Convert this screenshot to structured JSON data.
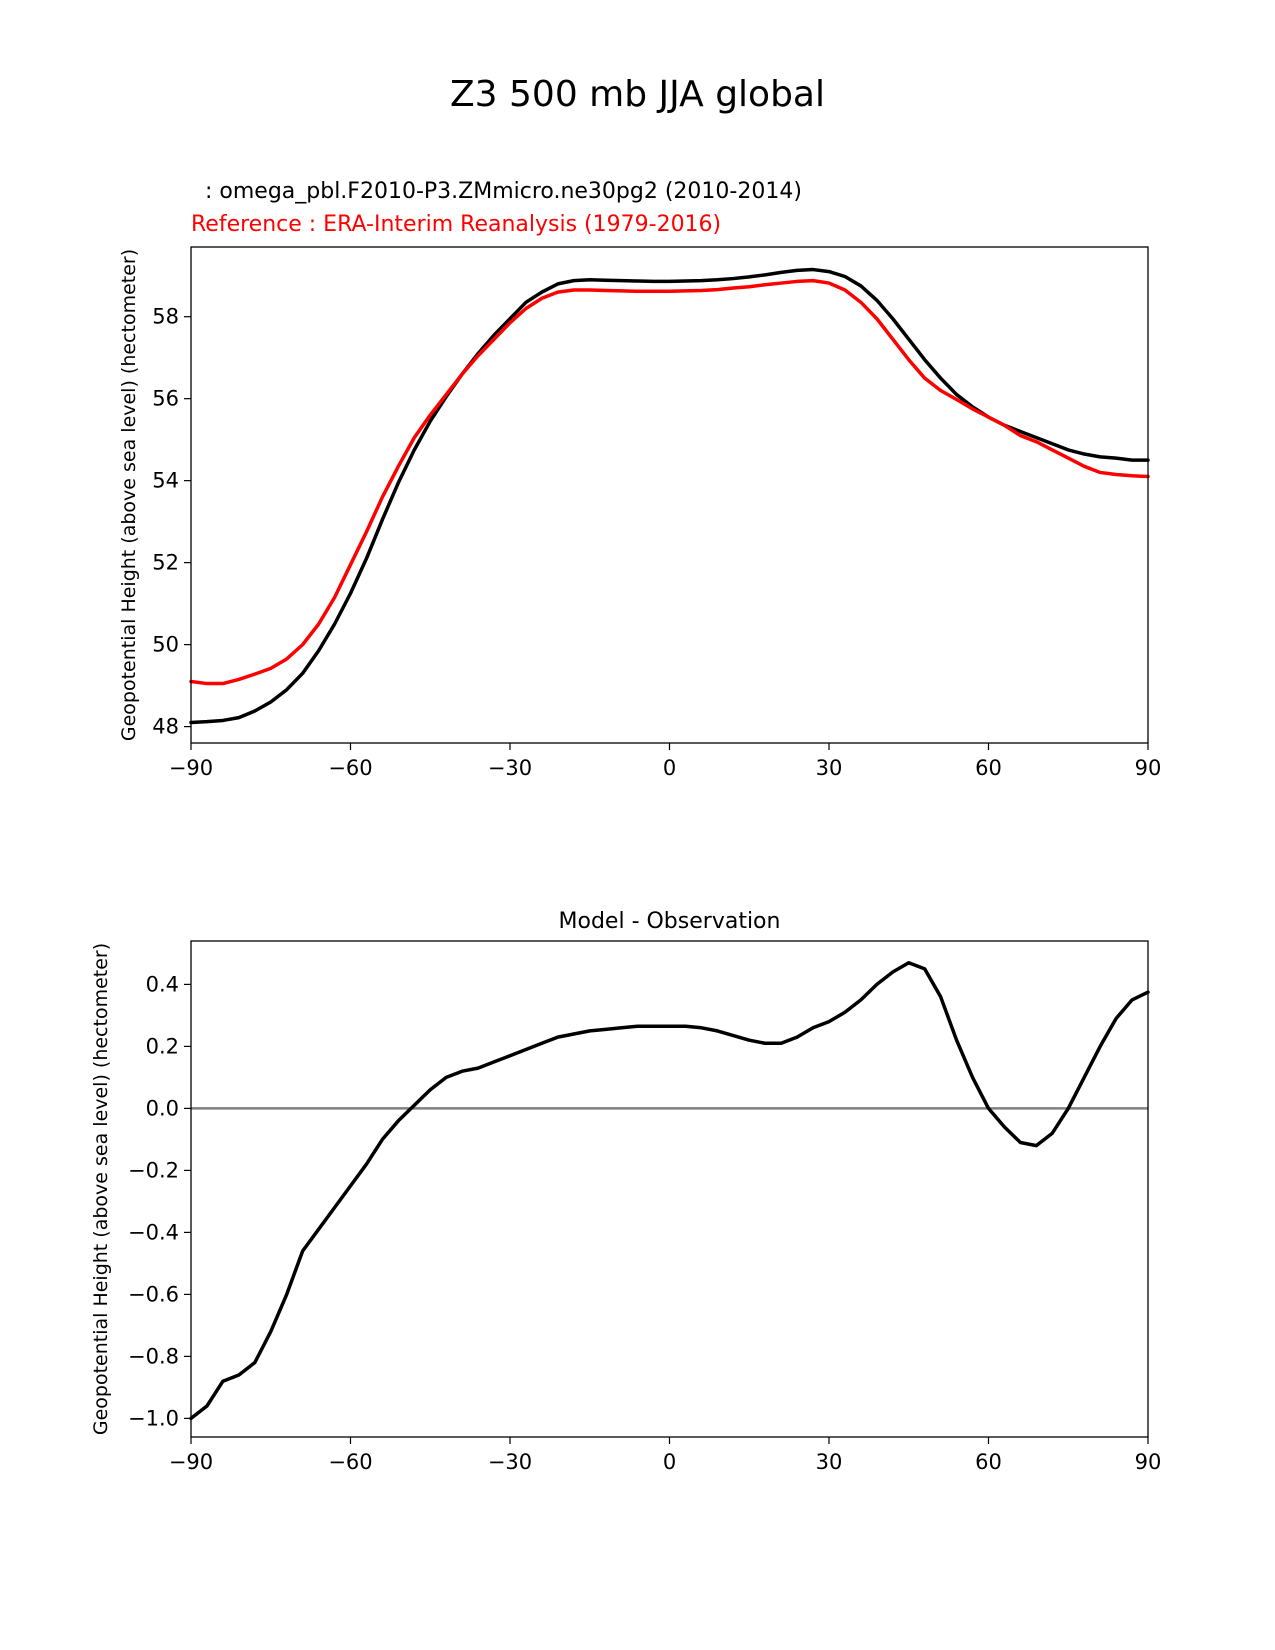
{
  "figure": {
    "title": "Z3 500 mb JJA global"
  },
  "chart_data": [
    {
      "type": "line",
      "id": "top",
      "title_left_line1": "  : omega_pbl.F2010-P3.ZMmicro.ne30pg2 (2010-2014)",
      "title_left_line2": "Reference : ERA-Interim Reanalysis (1979-2016)",
      "xlabel": "",
      "ylabel": "Geopotential Height (above sea level) (hectometer)",
      "xlim": [
        -90,
        90
      ],
      "ylim": [
        47.6,
        59.7
      ],
      "xticks": [
        -90,
        -60,
        -30,
        0,
        30,
        60,
        90
      ],
      "xtick_labels": [
        "−90",
        "−60",
        "−30",
        "0",
        "30",
        "60",
        "90"
      ],
      "yticks": [
        48,
        50,
        52,
        54,
        56,
        58
      ],
      "ytick_labels": [
        "48",
        "50",
        "52",
        "54",
        "56",
        "58"
      ],
      "series": [
        {
          "name": "Test: omega_pbl.F2010-P3.ZMmicro.ne30pg2",
          "color": "#000000",
          "x": [
            -90,
            -87,
            -84,
            -81,
            -78,
            -75,
            -72,
            -69,
            -66,
            -63,
            -60,
            -57,
            -54,
            -51,
            -48,
            -45,
            -42,
            -39,
            -36,
            -33,
            -30,
            -27,
            -24,
            -21,
            -18,
            -15,
            -12,
            -9,
            -6,
            -3,
            0,
            3,
            6,
            9,
            12,
            15,
            18,
            21,
            24,
            27,
            30,
            33,
            36,
            39,
            42,
            45,
            48,
            51,
            54,
            57,
            60,
            63,
            66,
            69,
            72,
            75,
            78,
            81,
            84,
            87,
            90
          ],
          "values": [
            48.1,
            48.12,
            48.15,
            48.22,
            48.38,
            48.6,
            48.9,
            49.3,
            49.85,
            50.5,
            51.25,
            52.1,
            53.05,
            53.95,
            54.75,
            55.45,
            56.05,
            56.6,
            57.1,
            57.55,
            57.95,
            58.35,
            58.6,
            58.8,
            58.88,
            58.9,
            58.89,
            58.88,
            58.87,
            58.86,
            58.86,
            58.87,
            58.88,
            58.9,
            58.93,
            58.97,
            59.02,
            59.08,
            59.13,
            59.15,
            59.1,
            58.98,
            58.75,
            58.4,
            57.95,
            57.45,
            56.95,
            56.5,
            56.1,
            55.8,
            55.55,
            55.35,
            55.2,
            55.05,
            54.9,
            54.75,
            54.65,
            54.58,
            54.55,
            54.5,
            54.5
          ]
        },
        {
          "name": "Reference: ERA-Interim Reanalysis",
          "color": "#ff0000",
          "x": [
            -90,
            -87,
            -84,
            -81,
            -78,
            -75,
            -72,
            -69,
            -66,
            -63,
            -60,
            -57,
            -54,
            -51,
            -48,
            -45,
            -42,
            -39,
            -36,
            -33,
            -30,
            -27,
            -24,
            -21,
            -18,
            -15,
            -12,
            -9,
            -6,
            -3,
            0,
            3,
            6,
            9,
            12,
            15,
            18,
            21,
            24,
            27,
            30,
            33,
            36,
            39,
            42,
            45,
            48,
            51,
            54,
            57,
            60,
            63,
            66,
            69,
            72,
            75,
            78,
            81,
            84,
            87,
            90
          ],
          "values": [
            49.1,
            49.05,
            49.05,
            49.15,
            49.28,
            49.42,
            49.65,
            50.0,
            50.5,
            51.15,
            51.95,
            52.75,
            53.6,
            54.35,
            55.05,
            55.6,
            56.1,
            56.6,
            57.05,
            57.45,
            57.85,
            58.2,
            58.45,
            58.6,
            58.65,
            58.65,
            58.64,
            58.63,
            58.62,
            58.62,
            58.62,
            58.63,
            58.64,
            58.66,
            58.7,
            58.73,
            58.78,
            58.82,
            58.86,
            58.88,
            58.82,
            58.65,
            58.35,
            57.95,
            57.45,
            56.95,
            56.5,
            56.2,
            55.98,
            55.75,
            55.55,
            55.35,
            55.1,
            54.95,
            54.75,
            54.55,
            54.35,
            54.2,
            54.15,
            54.12,
            54.1
          ]
        }
      ]
    },
    {
      "type": "line",
      "id": "bottom",
      "title": "Model - Observation",
      "xlabel": "",
      "ylabel": "Geopotential Height (above sea level) (hectometer)",
      "xlim": [
        -90,
        90
      ],
      "ylim": [
        -1.06,
        0.54
      ],
      "xticks": [
        -90,
        -60,
        -30,
        0,
        30,
        60,
        90
      ],
      "xtick_labels": [
        "−90",
        "−60",
        "−30",
        "0",
        "30",
        "60",
        "90"
      ],
      "yticks": [
        -1.0,
        -0.8,
        -0.6,
        -0.4,
        -0.2,
        0.0,
        0.2,
        0.4
      ],
      "ytick_labels": [
        "−1.0",
        "−0.8",
        "−0.6",
        "−0.4",
        "−0.2",
        "0.0",
        "0.2",
        "0.4"
      ],
      "zero_line": 0.0,
      "zero_line_color": "#808080",
      "series": [
        {
          "name": "Model - Observation",
          "color": "#000000",
          "x": [
            -90,
            -87,
            -84,
            -81,
            -78,
            -75,
            -72,
            -69,
            -66,
            -63,
            -60,
            -57,
            -54,
            -51,
            -48,
            -45,
            -42,
            -39,
            -36,
            -33,
            -30,
            -27,
            -24,
            -21,
            -18,
            -15,
            -12,
            -9,
            -6,
            -3,
            0,
            3,
            6,
            9,
            12,
            15,
            18,
            21,
            24,
            27,
            30,
            33,
            36,
            39,
            42,
            45,
            48,
            51,
            54,
            57,
            60,
            63,
            66,
            69,
            72,
            75,
            78,
            81,
            84,
            87,
            90
          ],
          "values": [
            -1.0,
            -0.96,
            -0.88,
            -0.86,
            -0.82,
            -0.72,
            -0.6,
            -0.46,
            -0.39,
            -0.32,
            -0.25,
            -0.18,
            -0.1,
            -0.04,
            0.01,
            0.06,
            0.1,
            0.12,
            0.13,
            0.15,
            0.17,
            0.19,
            0.21,
            0.23,
            0.24,
            0.25,
            0.255,
            0.26,
            0.265,
            0.265,
            0.265,
            0.265,
            0.26,
            0.25,
            0.235,
            0.22,
            0.21,
            0.21,
            0.23,
            0.26,
            0.28,
            0.31,
            0.35,
            0.4,
            0.44,
            0.47,
            0.45,
            0.36,
            0.22,
            0.1,
            0.0,
            -0.06,
            -0.11,
            -0.12,
            -0.08,
            0.0,
            0.1,
            0.2,
            0.29,
            0.35,
            0.375
          ]
        }
      ]
    }
  ]
}
